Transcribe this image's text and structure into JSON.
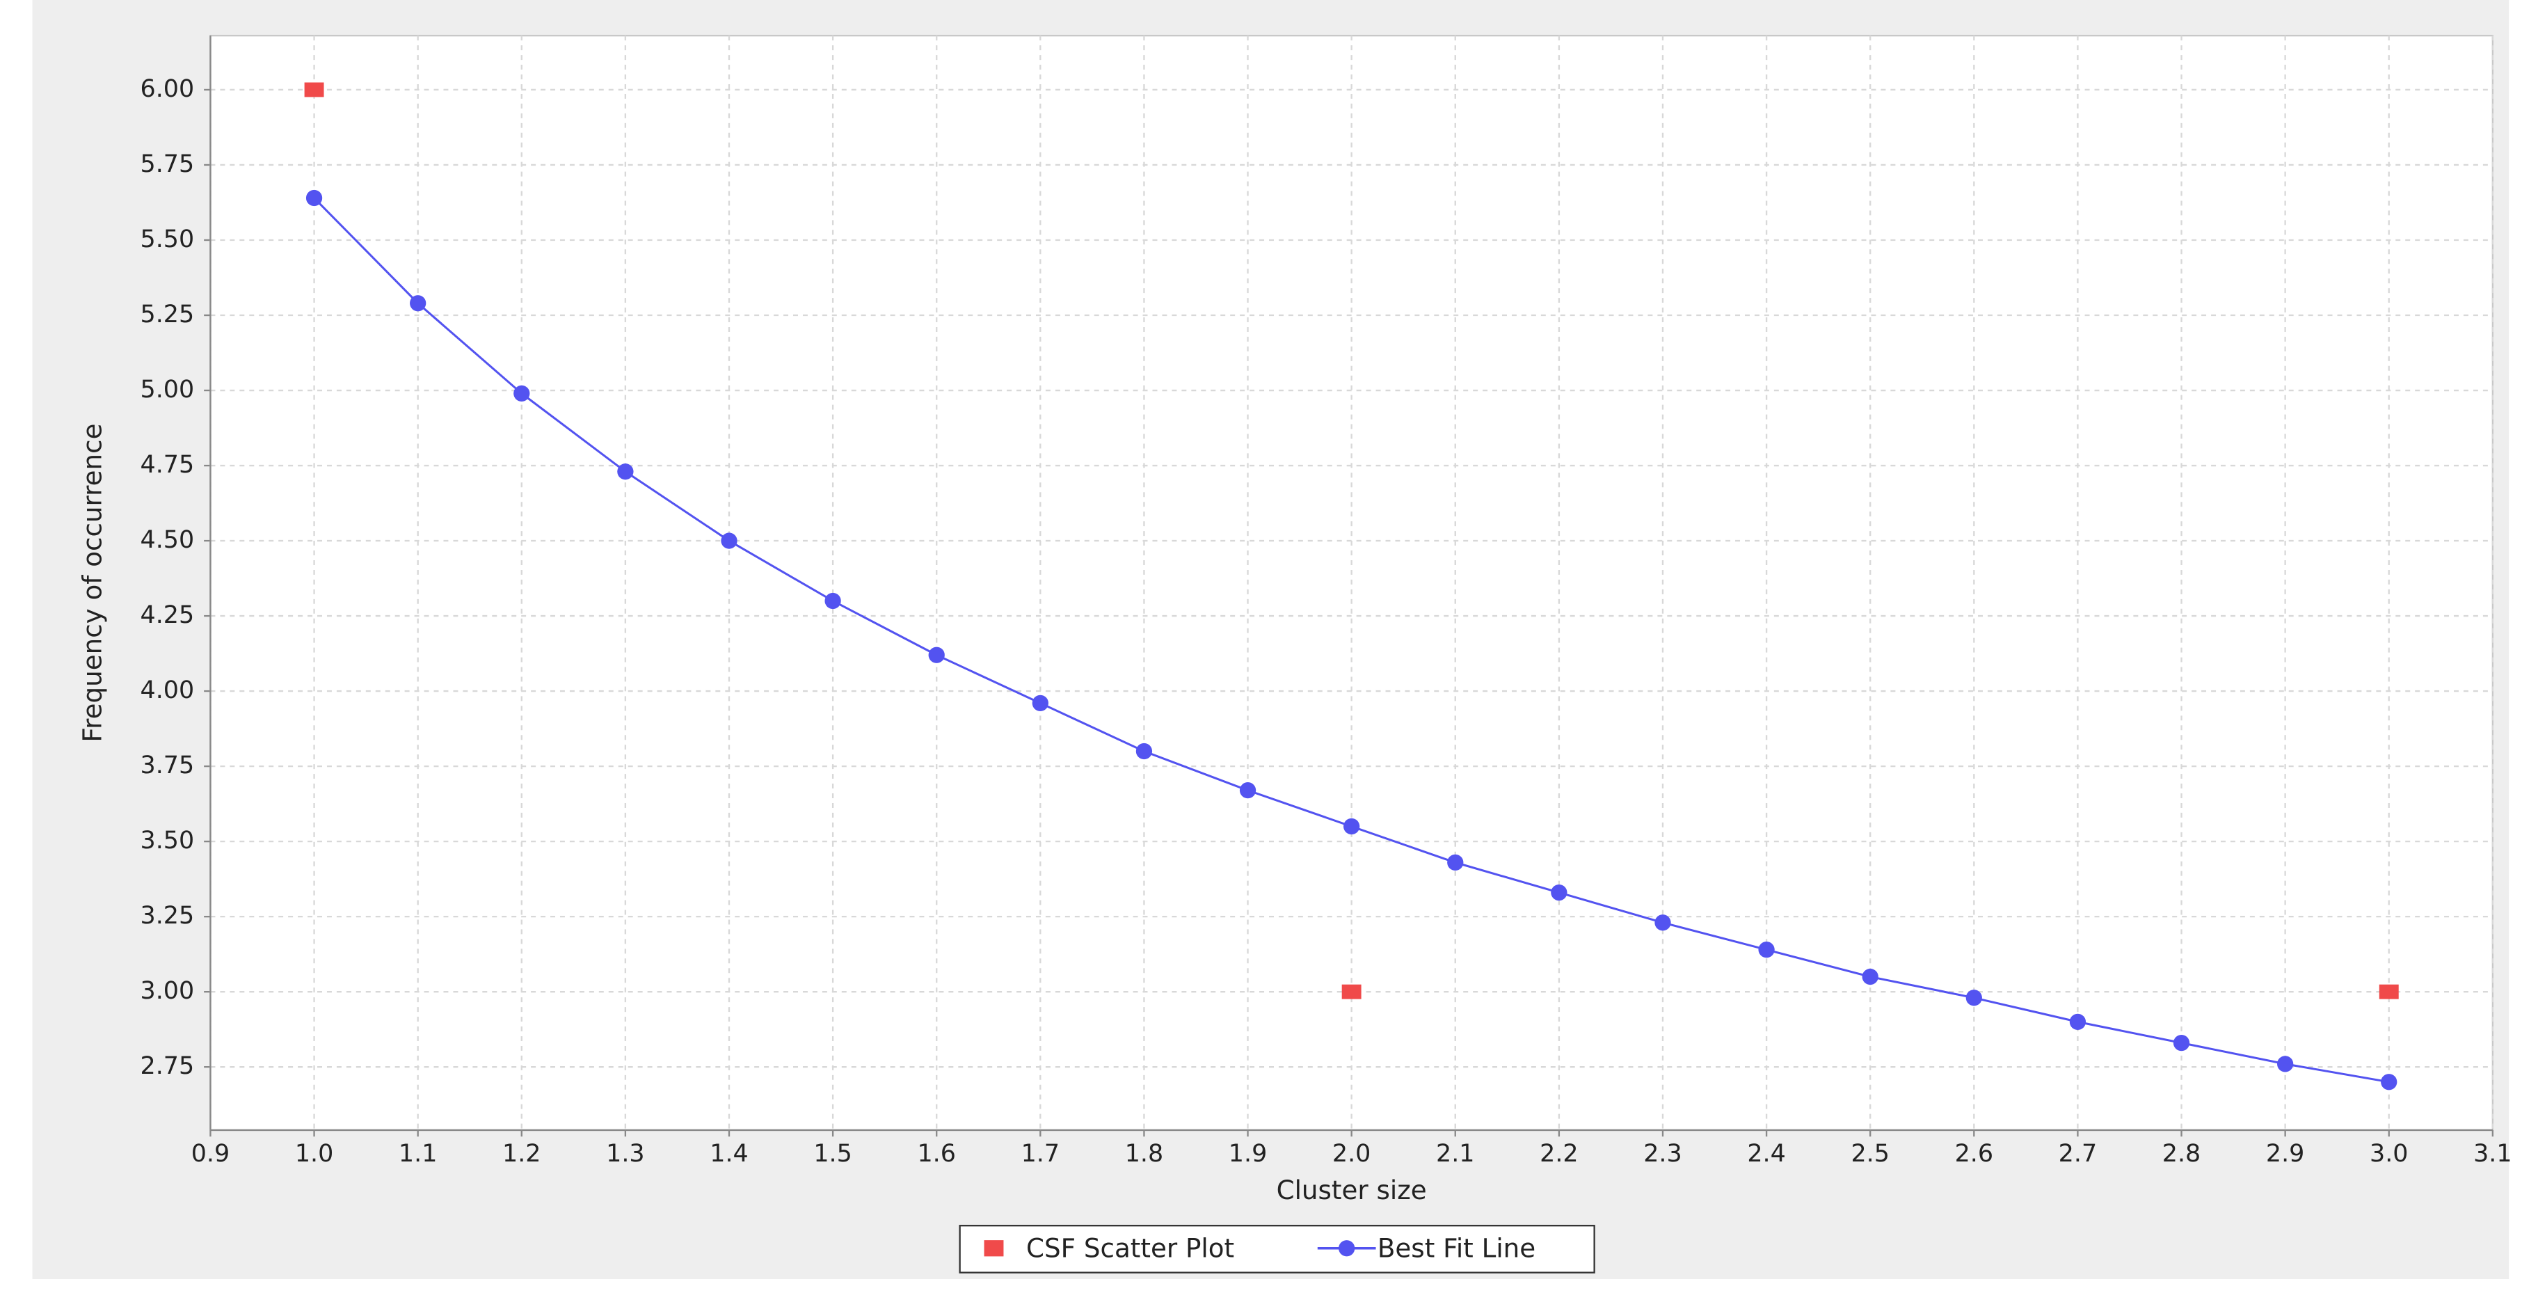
{
  "chart_data": {
    "type": "scatter",
    "x_label": "Cluster size",
    "y_label": "Frequency of occurrence",
    "xlim": [
      0.9,
      3.1
    ],
    "ylim": [
      2.54,
      6.18
    ],
    "xticks": [
      0.9,
      {
        "value": 1,
        "label": "1.0"
      },
      1.1,
      1.2,
      1.3,
      1.4,
      1.5,
      1.6,
      1.7,
      1.8,
      1.9,
      {
        "value": 2,
        "label": "2.0"
      },
      2.1,
      2.2,
      2.3,
      2.4,
      2.5,
      2.6,
      2.7,
      2.8,
      2.9,
      {
        "value": 3,
        "label": "3.0"
      },
      3.1
    ],
    "yticks": [
      {
        "value": 2.75,
        "label": "2.75"
      },
      {
        "value": 3,
        "label": "3.00"
      },
      {
        "value": 3.25,
        "label": "3.25"
      },
      {
        "value": 3.5,
        "label": "3.50"
      },
      {
        "value": 3.75,
        "label": "3.75"
      },
      {
        "value": 4,
        "label": "4.00"
      },
      {
        "value": 4.25,
        "label": "4.25"
      },
      {
        "value": 4.5,
        "label": "4.50"
      },
      {
        "value": 4.75,
        "label": "4.75"
      },
      {
        "value": 5,
        "label": "5.00"
      },
      {
        "value": 5.25,
        "label": "5.25"
      },
      {
        "value": 5.5,
        "label": "5.50"
      },
      {
        "value": 5.75,
        "label": "5.75"
      },
      {
        "value": 6,
        "label": "6.00"
      }
    ],
    "grid": true,
    "legend": "bottom",
    "series": [
      {
        "name": "CSF Scatter Plot",
        "color": "#f04a4a",
        "line": false,
        "marker": "square",
        "x": [
          1,
          2,
          3
        ],
        "values": [
          6,
          3,
          3
        ]
      },
      {
        "name": "Best Fit Line",
        "color": "#5353f0",
        "line": true,
        "marker": "circle",
        "x": [
          1,
          1.1,
          1.2,
          1.3,
          1.4,
          1.5,
          1.6,
          1.7,
          1.8,
          1.9,
          2,
          2.1,
          2.2,
          2.3,
          2.4,
          2.5,
          2.6,
          2.7,
          2.8,
          2.9,
          3
        ],
        "values": [
          5.64,
          5.29,
          4.99,
          4.73,
          4.5,
          4.3,
          4.12,
          3.96,
          3.8,
          3.67,
          3.55,
          3.43,
          3.33,
          3.23,
          3.14,
          3.05,
          2.98,
          2.9,
          2.83,
          2.76,
          2.7
        ]
      }
    ]
  }
}
